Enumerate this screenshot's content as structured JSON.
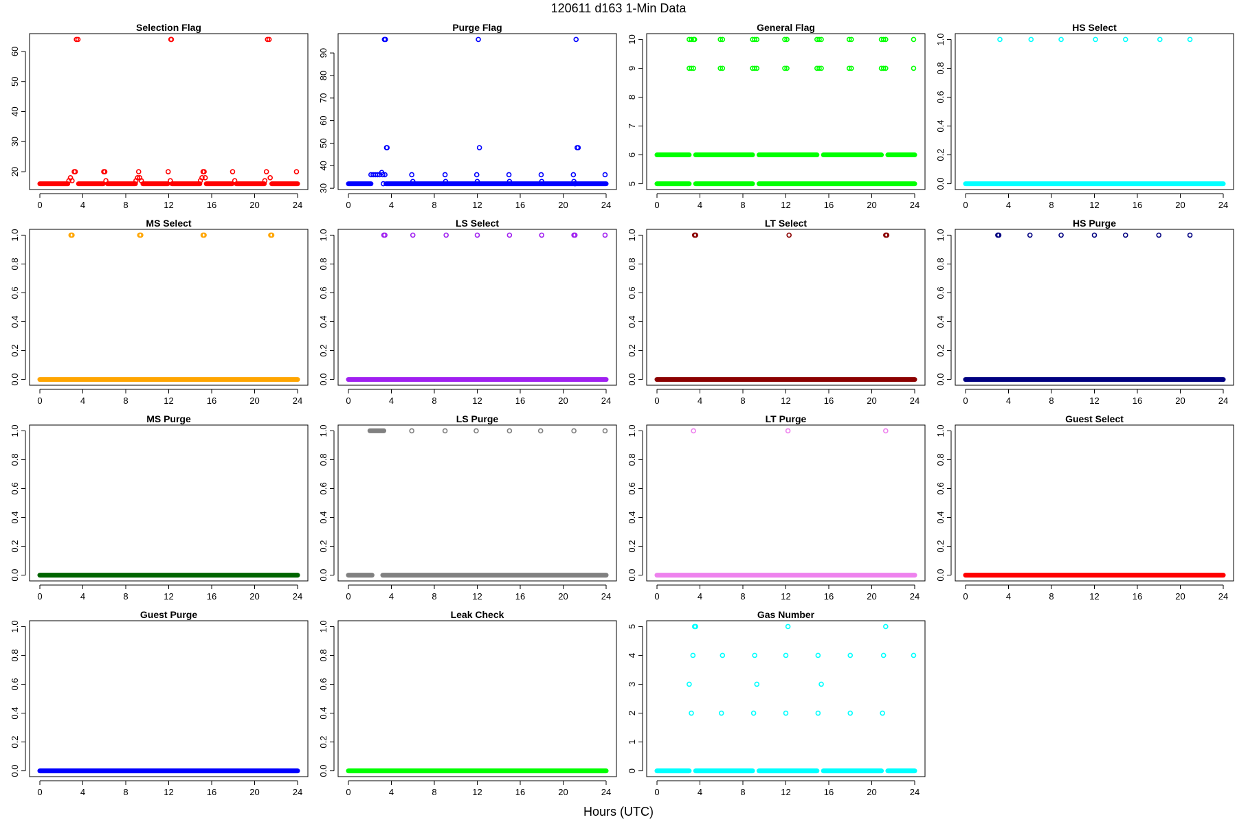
{
  "title": "120611   d163   1-Min Data",
  "xlabel": "Hours (UTC)",
  "chart_data": [
    {
      "type": "scatter",
      "title": "Selection Flag",
      "color": "#ff0000",
      "xlim": [
        0,
        24
      ],
      "xticks": [
        0,
        4,
        8,
        12,
        16,
        20,
        24
      ],
      "ylim": [
        16,
        64
      ],
      "yticks": [
        20,
        30,
        40,
        50,
        60
      ],
      "baseline": {
        "y": 16,
        "segments": [
          [
            0,
            2.6
          ],
          [
            3.6,
            5.9
          ],
          [
            6.3,
            8.9
          ],
          [
            9.6,
            11.9
          ],
          [
            12.3,
            14.9
          ],
          [
            15.5,
            17.9
          ],
          [
            18.3,
            20.9
          ],
          [
            21.6,
            24
          ]
        ]
      },
      "points": [
        [
          2.7,
          17
        ],
        [
          2.85,
          18
        ],
        [
          3.0,
          17
        ],
        [
          3.2,
          20
        ],
        [
          3.3,
          20
        ],
        [
          3.4,
          64
        ],
        [
          3.55,
          64
        ],
        [
          5.95,
          20
        ],
        [
          6.05,
          20
        ],
        [
          6.15,
          17
        ],
        [
          8.95,
          17
        ],
        [
          9.1,
          18
        ],
        [
          9.2,
          20
        ],
        [
          9.3,
          18
        ],
        [
          9.45,
          17
        ],
        [
          11.95,
          20
        ],
        [
          12.15,
          17
        ],
        [
          12.2,
          64
        ],
        [
          12.25,
          64
        ],
        [
          14.95,
          17
        ],
        [
          15.1,
          18
        ],
        [
          15.2,
          20
        ],
        [
          15.3,
          20
        ],
        [
          15.4,
          18
        ],
        [
          17.95,
          20
        ],
        [
          18.15,
          17
        ],
        [
          20.95,
          17
        ],
        [
          21.1,
          20
        ],
        [
          21.2,
          64
        ],
        [
          21.35,
          64
        ],
        [
          21.45,
          18
        ],
        [
          23.9,
          20
        ]
      ]
    },
    {
      "type": "scatter",
      "title": "Purge Flag",
      "color": "#0000ff",
      "xlim": [
        0,
        24
      ],
      "xticks": [
        0,
        4,
        8,
        12,
        16,
        20,
        24
      ],
      "ylim": [
        32,
        96
      ],
      "yticks": [
        30,
        40,
        50,
        60,
        70,
        80,
        90
      ],
      "baseline": {
        "y": 32,
        "segments": [
          [
            0,
            2.1
          ],
          [
            3.5,
            24
          ]
        ]
      },
      "points": [
        [
          2.1,
          36
        ],
        [
          2.3,
          36
        ],
        [
          2.5,
          36
        ],
        [
          2.7,
          36
        ],
        [
          2.9,
          36
        ],
        [
          3.1,
          37
        ],
        [
          3.2,
          36
        ],
        [
          3.25,
          32
        ],
        [
          3.35,
          96
        ],
        [
          3.45,
          96
        ],
        [
          3.55,
          48
        ],
        [
          3.6,
          48
        ],
        [
          3.4,
          36
        ],
        [
          5.9,
          36
        ],
        [
          6.0,
          33
        ],
        [
          9.0,
          36
        ],
        [
          9.05,
          33
        ],
        [
          11.95,
          36
        ],
        [
          12.0,
          33
        ],
        [
          12.1,
          96
        ],
        [
          12.2,
          48
        ],
        [
          14.95,
          36
        ],
        [
          15.0,
          33
        ],
        [
          17.95,
          36
        ],
        [
          18.0,
          33
        ],
        [
          20.95,
          36
        ],
        [
          21.0,
          33
        ],
        [
          21.1,
          32
        ],
        [
          21.2,
          96
        ],
        [
          21.3,
          48
        ],
        [
          21.4,
          48
        ],
        [
          23.9,
          36
        ]
      ]
    },
    {
      "type": "scatter",
      "title": "General Flag",
      "color": "#00ff00",
      "xlim": [
        0,
        24
      ],
      "xticks": [
        0,
        4,
        8,
        12,
        16,
        20,
        24
      ],
      "ylim": [
        5,
        10
      ],
      "yticks": [
        5,
        6,
        7,
        8,
        9,
        10
      ],
      "baseline": {
        "y": 5,
        "segments": [
          [
            0,
            3.0
          ],
          [
            3.6,
            8.9
          ],
          [
            9.5,
            24
          ]
        ]
      },
      "bands": [
        {
          "y": 6,
          "segments": [
            [
              0,
              3.0
            ],
            [
              3.6,
              8.9
            ],
            [
              9.5,
              14.9
            ],
            [
              15.5,
              20.9
            ],
            [
              21.5,
              24
            ]
          ]
        }
      ],
      "points": [
        [
          3.0,
          10
        ],
        [
          3.2,
          10
        ],
        [
          3.4,
          10
        ],
        [
          3.5,
          10
        ],
        [
          5.9,
          10
        ],
        [
          6.1,
          10
        ],
        [
          8.9,
          10
        ],
        [
          9.1,
          10
        ],
        [
          9.3,
          10
        ],
        [
          11.9,
          10
        ],
        [
          12.1,
          10
        ],
        [
          14.9,
          10
        ],
        [
          15.1,
          10
        ],
        [
          15.3,
          10
        ],
        [
          17.9,
          10
        ],
        [
          18.1,
          10
        ],
        [
          20.9,
          10
        ],
        [
          21.1,
          10
        ],
        [
          21.3,
          10
        ],
        [
          23.9,
          10
        ],
        [
          3.0,
          9
        ],
        [
          3.2,
          9
        ],
        [
          3.4,
          9
        ],
        [
          5.9,
          9
        ],
        [
          6.1,
          9
        ],
        [
          8.9,
          9
        ],
        [
          9.1,
          9
        ],
        [
          9.3,
          9
        ],
        [
          11.9,
          9
        ],
        [
          12.1,
          9
        ],
        [
          14.9,
          9
        ],
        [
          15.1,
          9
        ],
        [
          15.3,
          9
        ],
        [
          17.9,
          9
        ],
        [
          18.1,
          9
        ],
        [
          20.9,
          9
        ],
        [
          21.1,
          9
        ],
        [
          21.3,
          9
        ],
        [
          23.9,
          9
        ]
      ]
    },
    {
      "type": "scatter",
      "title": "HS Select",
      "color": "#00ffff",
      "xlim": [
        0,
        24
      ],
      "xticks": [
        0,
        4,
        8,
        12,
        16,
        20,
        24
      ],
      "ylim": [
        0,
        1
      ],
      "yticks": [
        0.0,
        0.2,
        0.4,
        0.6,
        0.8,
        1.0
      ],
      "baseline": {
        "y": 0,
        "segments": [
          [
            0,
            24
          ]
        ]
      },
      "points": [
        [
          3.2,
          1
        ],
        [
          6.1,
          1
        ],
        [
          8.9,
          1
        ],
        [
          12.1,
          1
        ],
        [
          14.9,
          1
        ],
        [
          18.1,
          1
        ],
        [
          20.9,
          1
        ]
      ]
    },
    {
      "type": "scatter",
      "title": "MS Select",
      "color": "#ffa500",
      "xlim": [
        0,
        24
      ],
      "xticks": [
        0,
        4,
        8,
        12,
        16,
        20,
        24
      ],
      "ylim": [
        0,
        1
      ],
      "yticks": [
        0.0,
        0.2,
        0.4,
        0.6,
        0.8,
        1.0
      ],
      "baseline": {
        "y": 0,
        "segments": [
          [
            0,
            24
          ]
        ]
      },
      "points": [
        [
          2.9,
          1
        ],
        [
          3.0,
          1
        ],
        [
          9.3,
          1
        ],
        [
          9.4,
          1
        ],
        [
          15.2,
          1
        ],
        [
          15.3,
          1
        ],
        [
          21.5,
          1
        ],
        [
          21.6,
          1
        ]
      ]
    },
    {
      "type": "scatter",
      "title": "LS Select",
      "color": "#a020f0",
      "xlim": [
        0,
        24
      ],
      "xticks": [
        0,
        4,
        8,
        12,
        16,
        20,
        24
      ],
      "ylim": [
        0,
        1
      ],
      "yticks": [
        0.0,
        0.2,
        0.4,
        0.6,
        0.8,
        1.0
      ],
      "baseline": {
        "y": 0,
        "segments": [
          [
            0,
            24
          ]
        ]
      },
      "points": [
        [
          3.3,
          1
        ],
        [
          3.4,
          1
        ],
        [
          6.0,
          1
        ],
        [
          9.1,
          1
        ],
        [
          12.0,
          1
        ],
        [
          15.0,
          1
        ],
        [
          18.0,
          1
        ],
        [
          21.0,
          1
        ],
        [
          21.1,
          1
        ],
        [
          23.9,
          1
        ]
      ]
    },
    {
      "type": "scatter",
      "title": "LT Select",
      "color": "#8b0000",
      "xlim": [
        0,
        24
      ],
      "xticks": [
        0,
        4,
        8,
        12,
        16,
        20,
        24
      ],
      "ylim": [
        0,
        1
      ],
      "yticks": [
        0.0,
        0.2,
        0.4,
        0.6,
        0.8,
        1.0
      ],
      "baseline": {
        "y": 0,
        "segments": [
          [
            0,
            24
          ]
        ]
      },
      "points": [
        [
          3.5,
          1
        ],
        [
          3.6,
          1
        ],
        [
          12.3,
          1
        ],
        [
          21.3,
          1
        ],
        [
          21.4,
          1
        ]
      ]
    },
    {
      "type": "scatter",
      "title": "HS Purge",
      "color": "#000080",
      "xlim": [
        0,
        24
      ],
      "xticks": [
        0,
        4,
        8,
        12,
        16,
        20,
        24
      ],
      "ylim": [
        0,
        1
      ],
      "yticks": [
        0.0,
        0.2,
        0.4,
        0.6,
        0.8,
        1.0
      ],
      "baseline": {
        "y": 0,
        "segments": [
          [
            0,
            24
          ]
        ]
      },
      "points": [
        [
          3.0,
          1
        ],
        [
          3.1,
          1
        ],
        [
          6.0,
          1
        ],
        [
          8.9,
          1
        ],
        [
          12.0,
          1
        ],
        [
          14.9,
          1
        ],
        [
          18.0,
          1
        ],
        [
          20.9,
          1
        ]
      ]
    },
    {
      "type": "scatter",
      "title": "MS Purge",
      "color": "#006400",
      "xlim": [
        0,
        24
      ],
      "xticks": [
        0,
        4,
        8,
        12,
        16,
        20,
        24
      ],
      "ylim": [
        0,
        1
      ],
      "yticks": [
        0.0,
        0.2,
        0.4,
        0.6,
        0.8,
        1.0
      ],
      "baseline": {
        "y": 0,
        "segments": [
          [
            0,
            24
          ]
        ]
      },
      "points": []
    },
    {
      "type": "scatter",
      "title": "LS Purge",
      "color": "#808080",
      "xlim": [
        0,
        24
      ],
      "xticks": [
        0,
        4,
        8,
        12,
        16,
        20,
        24
      ],
      "ylim": [
        0,
        1
      ],
      "yticks": [
        0.0,
        0.2,
        0.4,
        0.6,
        0.8,
        1.0
      ],
      "baseline": {
        "y": 0,
        "segments": [
          [
            0,
            2.2
          ],
          [
            3.2,
            24
          ]
        ]
      },
      "bands": [
        {
          "y": 1,
          "segments": [
            [
              2.0,
              3.3
            ]
          ]
        }
      ],
      "points": [
        [
          5.9,
          1
        ],
        [
          9.0,
          1
        ],
        [
          11.9,
          1
        ],
        [
          15.0,
          1
        ],
        [
          17.9,
          1
        ],
        [
          21.0,
          1
        ],
        [
          23.9,
          1
        ]
      ]
    },
    {
      "type": "scatter",
      "title": "LT Purge",
      "color": "#ee82ee",
      "xlim": [
        0,
        24
      ],
      "xticks": [
        0,
        4,
        8,
        12,
        16,
        20,
        24
      ],
      "ylim": [
        0,
        1
      ],
      "yticks": [
        0.0,
        0.2,
        0.4,
        0.6,
        0.8,
        1.0
      ],
      "baseline": {
        "y": 0,
        "segments": [
          [
            0,
            24
          ]
        ]
      },
      "points": [
        [
          3.4,
          1
        ],
        [
          12.2,
          1
        ],
        [
          21.3,
          1
        ]
      ]
    },
    {
      "type": "scatter",
      "title": "Guest Select",
      "color": "#ff0000",
      "xlim": [
        0,
        24
      ],
      "xticks": [
        0,
        4,
        8,
        12,
        16,
        20,
        24
      ],
      "ylim": [
        0,
        1
      ],
      "yticks": [
        0.0,
        0.2,
        0.4,
        0.6,
        0.8,
        1.0
      ],
      "baseline": {
        "y": 0,
        "segments": [
          [
            0,
            24
          ]
        ]
      },
      "points": []
    },
    {
      "type": "scatter",
      "title": "Guest Purge",
      "color": "#0000ff",
      "xlim": [
        0,
        24
      ],
      "xticks": [
        0,
        4,
        8,
        12,
        16,
        20,
        24
      ],
      "ylim": [
        0,
        1
      ],
      "yticks": [
        0.0,
        0.2,
        0.4,
        0.6,
        0.8,
        1.0
      ],
      "baseline": {
        "y": 0,
        "segments": [
          [
            0,
            24
          ]
        ]
      },
      "points": []
    },
    {
      "type": "scatter",
      "title": "Leak Check",
      "color": "#00ff00",
      "xlim": [
        0,
        24
      ],
      "xticks": [
        0,
        4,
        8,
        12,
        16,
        20,
        24
      ],
      "ylim": [
        0,
        1
      ],
      "yticks": [
        0.0,
        0.2,
        0.4,
        0.6,
        0.8,
        1.0
      ],
      "baseline": {
        "y": 0,
        "segments": [
          [
            0,
            24
          ]
        ]
      },
      "points": []
    },
    {
      "type": "scatter",
      "title": "Gas Number",
      "color": "#00ffff",
      "xlim": [
        0,
        24
      ],
      "xticks": [
        0,
        4,
        8,
        12,
        16,
        20,
        24
      ],
      "ylim": [
        0,
        5
      ],
      "yticks": [
        0,
        1,
        2,
        3,
        4,
        5
      ],
      "baseline": {
        "y": 0,
        "segments": [
          [
            0,
            3.0
          ],
          [
            3.6,
            8.9
          ],
          [
            9.5,
            14.9
          ],
          [
            15.5,
            20.9
          ],
          [
            21.5,
            24
          ]
        ]
      },
      "points": [
        [
          3.0,
          3
        ],
        [
          3.2,
          2
        ],
        [
          3.35,
          4
        ],
        [
          3.5,
          5
        ],
        [
          3.6,
          5
        ],
        [
          6.0,
          2
        ],
        [
          6.1,
          4
        ],
        [
          9.0,
          2
        ],
        [
          9.1,
          4
        ],
        [
          9.3,
          3
        ],
        [
          12.0,
          2
        ],
        [
          12.0,
          4
        ],
        [
          12.2,
          5
        ],
        [
          15.0,
          2
        ],
        [
          15.0,
          4
        ],
        [
          15.3,
          3
        ],
        [
          18.0,
          2
        ],
        [
          18.0,
          4
        ],
        [
          21.0,
          2
        ],
        [
          21.1,
          4
        ],
        [
          21.3,
          5
        ],
        [
          23.9,
          4
        ]
      ]
    }
  ]
}
